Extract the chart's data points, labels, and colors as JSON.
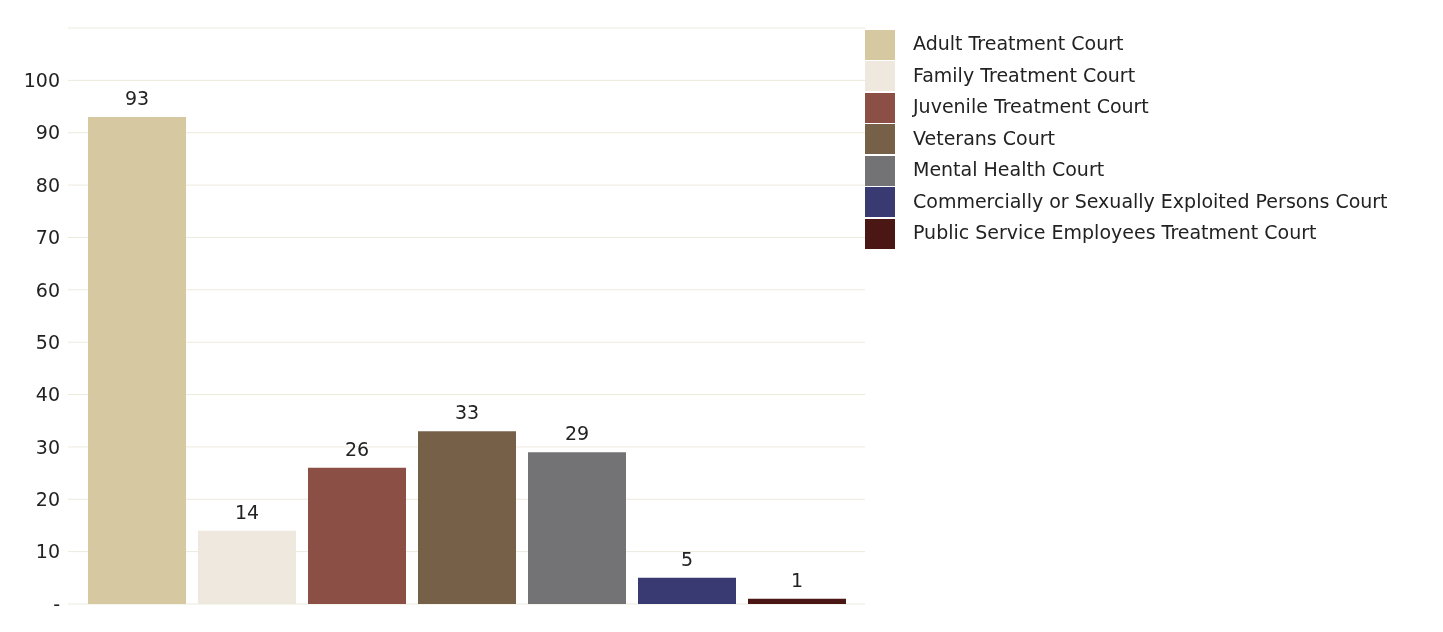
{
  "chart_data": {
    "type": "bar",
    "categories": [
      null
    ],
    "series": [
      {
        "name": "Adult Treatment Court",
        "color": "#d6c9a1",
        "values": [
          93
        ]
      },
      {
        "name": "Family Treatment Court",
        "color": "#efe8de",
        "values": [
          14
        ]
      },
      {
        "name": "Juvenile Treatment Court",
        "color": "#8c4f46",
        "values": [
          26
        ]
      },
      {
        "name": "Veterans Court",
        "color": "#766048",
        "values": [
          33
        ]
      },
      {
        "name": "Mental Health Court",
        "color": "#737375",
        "values": [
          29
        ]
      },
      {
        "name": "Commercially or Sexually Exploited Persons Court",
        "color": "#3a3a72",
        "values": [
          5
        ]
      },
      {
        "name": "Public Service Employees Treatment Court",
        "color": "#4a1714",
        "values": [
          1
        ]
      }
    ],
    "ylim": [
      0,
      110
    ],
    "yticks": [
      {
        "value": 0,
        "label": "-"
      },
      10,
      20,
      30,
      40,
      50,
      60,
      70,
      80,
      90,
      100
    ],
    "grid": "y",
    "legend": "top right",
    "data_labels": true
  }
}
